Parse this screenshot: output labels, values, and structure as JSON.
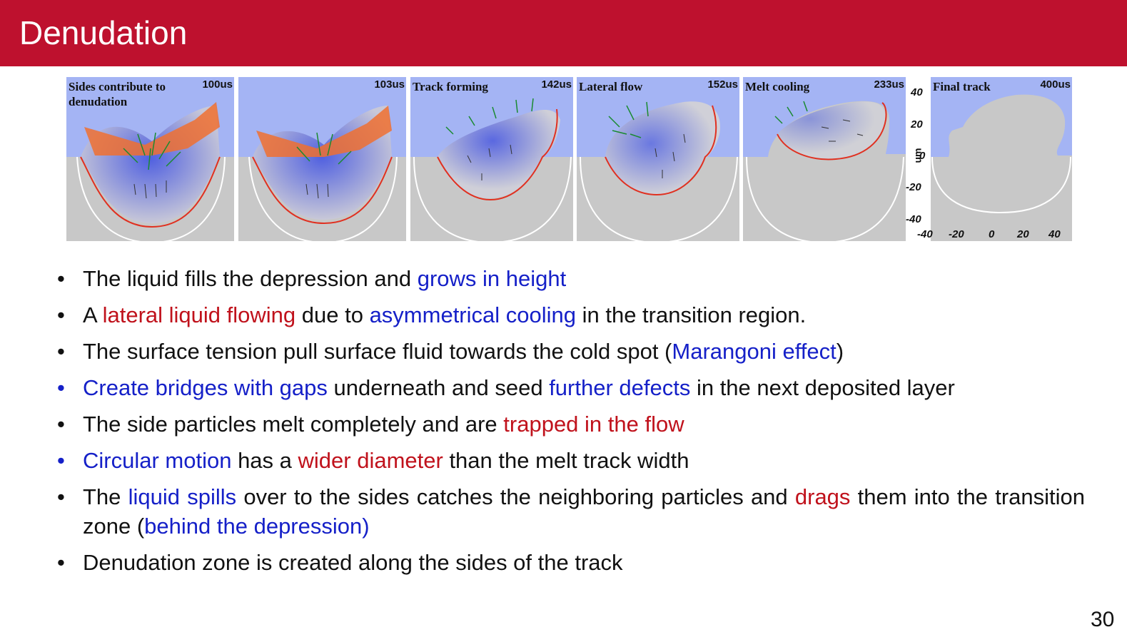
{
  "title": "Denudation",
  "figure": {
    "panels": [
      {
        "label": "Sides contribute to denudation",
        "time": "100us"
      },
      {
        "label": "",
        "time": "103us"
      },
      {
        "label": "Track forming",
        "time": "142us"
      },
      {
        "label": "Lateral flow",
        "time": "152us"
      },
      {
        "label": "Melt cooling",
        "time": "233us"
      },
      {
        "label": "Final track",
        "time": "400us"
      }
    ],
    "y_unit": "um",
    "y_ticks": [
      "40",
      "20",
      "0",
      "-20",
      "-40"
    ],
    "x_ticks": [
      "-40",
      "-20",
      "0",
      "20",
      "40"
    ]
  },
  "bullets": [
    {
      "runs": [
        {
          "t": "The liquid fills the depression and "
        },
        {
          "t": "grows in height",
          "c": "blue"
        }
      ]
    },
    {
      "runs": [
        {
          "t": "A "
        },
        {
          "t": "lateral liquid flowing",
          "c": "red"
        },
        {
          "t": " due to "
        },
        {
          "t": "asymmetrical cooling",
          "c": "blue"
        },
        {
          "t": " in the transition region."
        }
      ]
    },
    {
      "runs": [
        {
          "t": "The surface tension pull surface fluid towards the cold spot ("
        },
        {
          "t": "Marangoni effect",
          "c": "blue"
        },
        {
          "t": ")"
        }
      ]
    },
    {
      "runs": [
        {
          "t": "Create bridges with gaps",
          "c": "blue"
        },
        {
          "t": " underneath and seed "
        },
        {
          "t": "further defects",
          "c": "blue"
        },
        {
          "t": " in the next deposited layer"
        }
      ]
    },
    {
      "runs": [
        {
          "t": "The side particles melt completely and are "
        },
        {
          "t": "trapped in the flow",
          "c": "red"
        }
      ]
    },
    {
      "runs": [
        {
          "t": "Circular motion",
          "c": "blue"
        },
        {
          "t": " has a "
        },
        {
          "t": "wider diameter",
          "c": "red"
        },
        {
          "t": " than the melt track width"
        }
      ]
    },
    {
      "runs": [
        {
          "t": "The "
        },
        {
          "t": "liquid spills",
          "c": "blue"
        },
        {
          "t": " over to the sides catches the neighboring particles and "
        },
        {
          "t": "drags",
          "c": "red"
        },
        {
          "t": " them into the transition zone ("
        },
        {
          "t": "behind the depression)",
          "c": "blue"
        }
      ]
    },
    {
      "runs": [
        {
          "t": "Denudation zone is created along the sides of the track"
        }
      ]
    }
  ],
  "page_number": "30",
  "colors": {
    "title_bar": "#be112e",
    "blue_text": "#1520c8",
    "red_text": "#c0121c",
    "sky": "#a4b4f4",
    "substrate": "#c8c8c8",
    "melt_outline": "#e03020"
  }
}
